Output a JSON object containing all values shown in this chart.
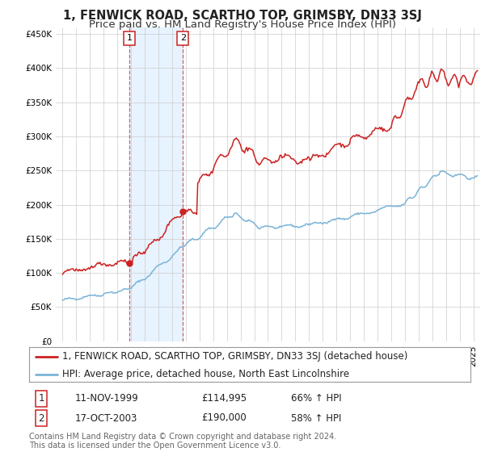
{
  "title": "1, FENWICK ROAD, SCARTHO TOP, GRIMSBY, DN33 3SJ",
  "subtitle": "Price paid vs. HM Land Registry's House Price Index (HPI)",
  "legend_line1": "1, FENWICK ROAD, SCARTHO TOP, GRIMSBY, DN33 3SJ (detached house)",
  "legend_line2": "HPI: Average price, detached house, North East Lincolnshire",
  "transaction1_label": "1",
  "transaction1_date": "11-NOV-1999",
  "transaction1_price": "£114,995",
  "transaction1_hpi": "66% ↑ HPI",
  "transaction2_label": "2",
  "transaction2_date": "17-OCT-2003",
  "transaction2_price": "£190,000",
  "transaction2_hpi": "58% ↑ HPI",
  "footnote": "Contains HM Land Registry data © Crown copyright and database right 2024.\nThis data is licensed under the Open Government Licence v3.0.",
  "ylim": [
    0,
    460000
  ],
  "yticks": [
    0,
    50000,
    100000,
    150000,
    200000,
    250000,
    300000,
    350000,
    400000,
    450000
  ],
  "hpi_color": "#7ab4d8",
  "price_color": "#cc2222",
  "marker_color": "#cc2222",
  "vline_color": "#cc2222",
  "shade_color": "#ddeeff",
  "grid_color": "#cccccc",
  "background_color": "#ffffff",
  "title_fontsize": 10.5,
  "subtitle_fontsize": 9.5,
  "tick_fontsize": 7.5,
  "legend_fontsize": 8.5,
  "table_fontsize": 8.5,
  "footnote_fontsize": 7.0
}
